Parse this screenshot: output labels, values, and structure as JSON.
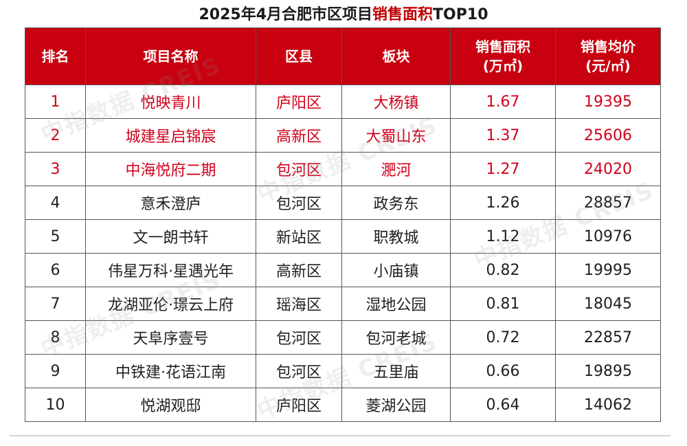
{
  "title": {
    "prefix": "2025年4月合肥市区项目",
    "highlight": "销售面积",
    "suffix": "TOP10"
  },
  "colors": {
    "header_bg": "#c8000f",
    "header_text": "#ffffff",
    "top3_text": "#d0021b",
    "body_text": "#1f1f1f"
  },
  "table": {
    "headers": {
      "rank": "排名",
      "name": "项目名称",
      "district": "区县",
      "block": "板块",
      "area_line1": "销售面积",
      "area_line2": "(万㎡)",
      "price_line1": "销售均价",
      "price_line2": "(元/㎡)"
    },
    "rows": [
      {
        "rank": "1",
        "name": "悦映青川",
        "district": "庐阳区",
        "block": "大杨镇",
        "area": "1.67",
        "price": "19395"
      },
      {
        "rank": "2",
        "name": "城建星启锦宸",
        "district": "高新区",
        "block": "大蜀山东",
        "area": "1.37",
        "price": "25606"
      },
      {
        "rank": "3",
        "name": "中海悦府二期",
        "district": "包河区",
        "block": "淝河",
        "area": "1.27",
        "price": "24020"
      },
      {
        "rank": "4",
        "name": "意禾澄庐",
        "district": "包河区",
        "block": "政务东",
        "area": "1.26",
        "price": "28857"
      },
      {
        "rank": "5",
        "name": "文一朗书轩",
        "district": "新站区",
        "block": "职教城",
        "area": "1.12",
        "price": "10976"
      },
      {
        "rank": "6",
        "name": "伟星万科·星遇光年",
        "district": "高新区",
        "block": "小庙镇",
        "area": "0.82",
        "price": "19995"
      },
      {
        "rank": "7",
        "name": "龙湖亚伦·璟云上府",
        "district": "瑶海区",
        "block": "湿地公园",
        "area": "0.81",
        "price": "18045"
      },
      {
        "rank": "8",
        "name": "天阜序壹号",
        "district": "包河区",
        "block": "包河老城",
        "area": "0.72",
        "price": "22857"
      },
      {
        "rank": "9",
        "name": "中铁建·花语江南",
        "district": "包河区",
        "block": "五里庙",
        "area": "0.66",
        "price": "19895"
      },
      {
        "rank": "10",
        "name": "悦湖观邸",
        "district": "庐阳区",
        "block": "菱湖公园",
        "area": "0.64",
        "price": "14062"
      }
    ]
  },
  "watermarks": [
    "中指数据 CREIS",
    "中指数据 CREIS",
    "中指数据 CREIS",
    "中指数据 CREIS",
    "中指数据 CREIS"
  ]
}
